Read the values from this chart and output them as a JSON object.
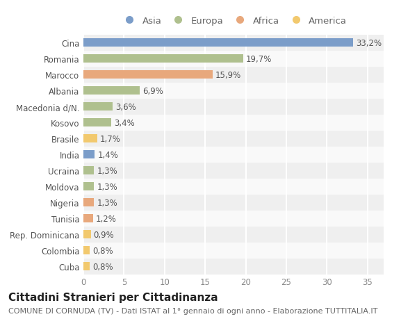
{
  "categories": [
    "Cina",
    "Romania",
    "Marocco",
    "Albania",
    "Macedonia d/N.",
    "Kosovo",
    "Brasile",
    "India",
    "Ucraina",
    "Moldova",
    "Nigeria",
    "Tunisia",
    "Rep. Dominicana",
    "Colombia",
    "Cuba"
  ],
  "values": [
    33.2,
    19.7,
    15.9,
    6.9,
    3.6,
    3.4,
    1.7,
    1.4,
    1.3,
    1.3,
    1.3,
    1.2,
    0.9,
    0.8,
    0.8
  ],
  "labels": [
    "33,2%",
    "19,7%",
    "15,9%",
    "6,9%",
    "3,6%",
    "3,4%",
    "1,7%",
    "1,4%",
    "1,3%",
    "1,3%",
    "1,3%",
    "1,2%",
    "0,9%",
    "0,8%",
    "0,8%"
  ],
  "continents": [
    "Asia",
    "Europa",
    "Africa",
    "Europa",
    "Europa",
    "Europa",
    "America",
    "Asia",
    "Europa",
    "Europa",
    "Africa",
    "Africa",
    "America",
    "America",
    "America"
  ],
  "continent_colors": {
    "Asia": "#7b9dc9",
    "Europa": "#afc08e",
    "Africa": "#e8a87c",
    "America": "#f2c96e"
  },
  "legend_order": [
    "Asia",
    "Europa",
    "Africa",
    "America"
  ],
  "title": "Cittadini Stranieri per Cittadinanza",
  "subtitle": "COMUNE DI CORNUDA (TV) - Dati ISTAT al 1° gennaio di ogni anno - Elaborazione TUTTITALIA.IT",
  "xlim": [
    0,
    37
  ],
  "xticks": [
    0,
    5,
    10,
    15,
    20,
    25,
    30,
    35
  ],
  "background_color": "#ffffff",
  "row_alt_color": "#efefef",
  "row_main_color": "#f9f9f9",
  "grid_color": "#ffffff",
  "title_fontsize": 11,
  "subtitle_fontsize": 8,
  "label_fontsize": 8.5,
  "tick_fontsize": 8.5,
  "legend_fontsize": 9.5
}
